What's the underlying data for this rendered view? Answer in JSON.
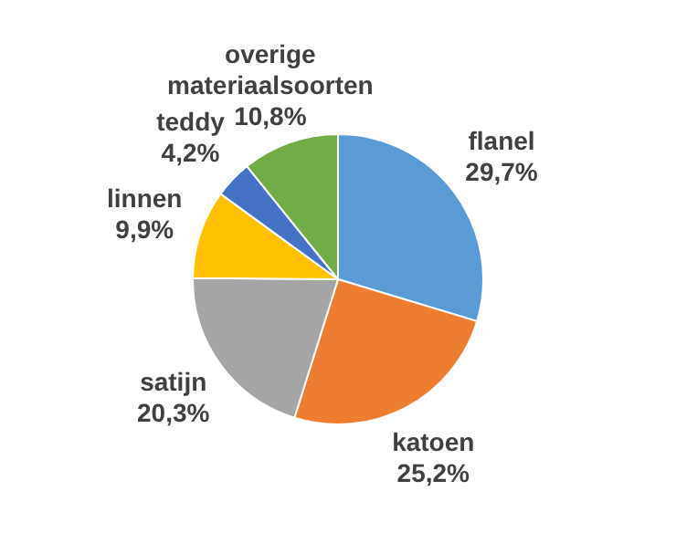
{
  "chart_data": {
    "type": "pie",
    "categories": [
      "flanel",
      "katoen",
      "satijn",
      "linnen",
      "teddy",
      "overige materiaalsoorten"
    ],
    "values": [
      29.7,
      25.2,
      20.3,
      9.9,
      4.2,
      10.8
    ],
    "colors": [
      "#5b9bd5",
      "#ed7d31",
      "#a5a5a5",
      "#ffc000",
      "#4472c4",
      "#70ad47"
    ],
    "value_labels": [
      "29,7%",
      "25,2%",
      "20,3%",
      "9,9%",
      "4,2%",
      "10,8%"
    ],
    "legend": false
  }
}
